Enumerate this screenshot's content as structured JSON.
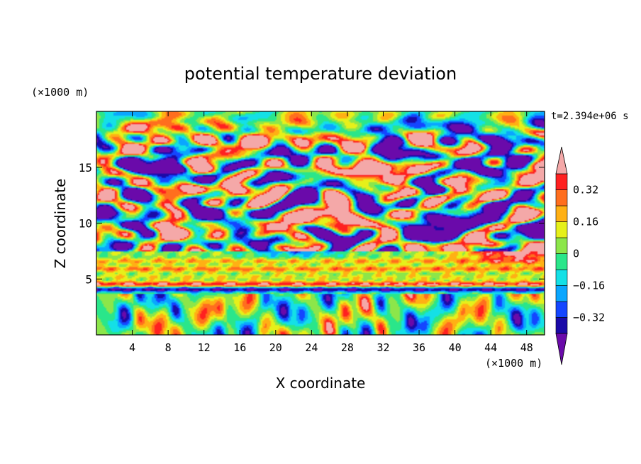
{
  "chart_data": {
    "type": "heatmap",
    "title": "potential temperature deviation",
    "xlabel": "X coordinate",
    "ylabel": "Z coordinate",
    "x_unit": "(×1000 m)",
    "y_unit": "(×1000 m)",
    "time_label": "t=2.394e+06 s",
    "xlim": [
      0,
      50
    ],
    "ylim": [
      0,
      20
    ],
    "x_ticks": [
      4,
      8,
      12,
      16,
      20,
      24,
      28,
      32,
      36,
      40,
      44,
      48
    ],
    "y_ticks": [
      5,
      10,
      15
    ],
    "colorbar": {
      "levels": [
        -0.4,
        -0.32,
        -0.24,
        -0.16,
        -0.08,
        0,
        0.08,
        0.16,
        0.24,
        0.32,
        0.4
      ],
      "tick_labels": [
        "0.32",
        "0.16",
        "0",
        "-0.16",
        "-0.32"
      ],
      "tick_values": [
        0.32,
        0.16,
        0,
        -0.16,
        -0.32
      ],
      "colors_low_to_high": [
        "#6a0aaa",
        "#1a0aa8",
        "#1446ff",
        "#0aa6ff",
        "#14e0e6",
        "#2ae68a",
        "#8ce64a",
        "#e6f01a",
        "#ffb014",
        "#ff6e1e",
        "#ff2020",
        "#f4a8a8"
      ],
      "extend": "both"
    },
    "features": {
      "bands": [
        {
          "z_center": 4.1,
          "value": -0.45
        },
        {
          "z_center": 4.5,
          "value": 0.45
        },
        {
          "z_center": 5.2,
          "value": 0.12
        },
        {
          "z_center": 5.9,
          "value": 0.25
        },
        {
          "z_center": 6.6,
          "value": 0.2
        },
        {
          "z_center": 7.3,
          "value": 0.05
        }
      ],
      "blobs": [
        {
          "x": 25,
          "z": 10.5,
          "value": 0.46
        },
        {
          "x": 14,
          "z": 10.8,
          "value": -0.45
        },
        {
          "x": 38,
          "z": 10.2,
          "value": -0.42
        },
        {
          "x": 13,
          "z": 13.0,
          "value": 0.44
        },
        {
          "x": 4,
          "z": 15.5,
          "value": -0.45
        },
        {
          "x": 30,
          "z": 15.0,
          "value": 0.44
        },
        {
          "x": 44,
          "z": 15.0,
          "value": -0.44
        },
        {
          "x": 22,
          "z": 8.0,
          "value": -0.42
        },
        {
          "x": 47,
          "z": 7.5,
          "value": 0.45
        },
        {
          "x": 10,
          "z": 17.5,
          "value": 0.3
        },
        {
          "x": 40,
          "z": 18.0,
          "value": -0.15
        },
        {
          "x": 20,
          "z": 19.0,
          "value": 0.05
        }
      ],
      "convective_columns_x": [
        3,
        7,
        12,
        17,
        21,
        26,
        30,
        35,
        39,
        43,
        47
      ]
    }
  }
}
